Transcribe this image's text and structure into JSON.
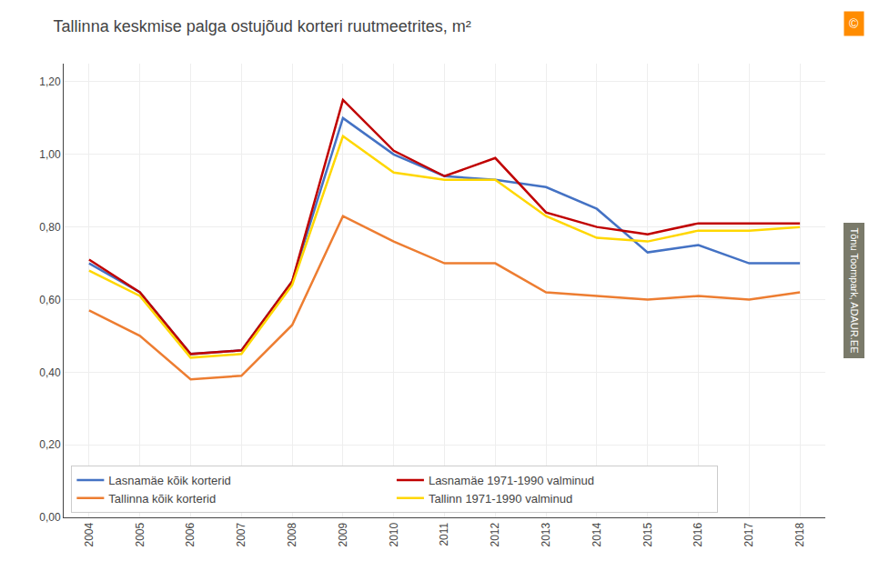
{
  "chart_data": {
    "type": "line",
    "title": "Tallinna keskmise palga ostujõud korteri ruutmeetrites, m²",
    "x": [
      2004,
      2005,
      2006,
      2007,
      2008,
      2009,
      2010,
      2011,
      2012,
      2013,
      2014,
      2015,
      2016,
      2017,
      2018
    ],
    "series": [
      {
        "name": "Lasnamäe kõik korterid",
        "color": "#4472C4",
        "values": [
          0.7,
          0.62,
          0.45,
          0.46,
          0.65,
          1.1,
          1.0,
          0.94,
          0.93,
          0.91,
          0.85,
          0.73,
          0.75,
          0.7,
          0.7
        ]
      },
      {
        "name": "Lasnamäe 1971-1990 valminud",
        "color": "#C00000",
        "values": [
          0.71,
          0.62,
          0.45,
          0.46,
          0.65,
          1.15,
          1.01,
          0.94,
          0.99,
          0.84,
          0.8,
          0.78,
          0.81,
          0.81,
          0.81
        ]
      },
      {
        "name": "Tallinna kõik korterid",
        "color": "#ED7D31",
        "values": [
          0.57,
          0.5,
          0.38,
          0.39,
          0.53,
          0.83,
          0.76,
          0.7,
          0.7,
          0.62,
          0.61,
          0.6,
          0.61,
          0.6,
          0.62
        ]
      },
      {
        "name": "Tallinn 1971-1990 valminud",
        "color": "#FFD700",
        "values": [
          0.68,
          0.61,
          0.44,
          0.45,
          0.64,
          1.05,
          0.95,
          0.93,
          0.93,
          0.83,
          0.77,
          0.76,
          0.79,
          0.79,
          0.8
        ]
      }
    ],
    "xlim": [
      2003.5,
      2018.5
    ],
    "xticks": [
      2004,
      2005,
      2006,
      2007,
      2008,
      2009,
      2010,
      2011,
      2012,
      2013,
      2014,
      2015,
      2016,
      2017,
      2018
    ],
    "ylim": [
      0.0,
      1.25
    ],
    "yticks": [
      {
        "value": 0.0,
        "label": "0,00"
      },
      {
        "value": 0.2,
        "label": "0,20"
      },
      {
        "value": 0.4,
        "label": "0,40"
      },
      {
        "value": 0.6,
        "label": "0,60"
      },
      {
        "value": 0.8,
        "label": "0,80"
      },
      {
        "value": 1.0,
        "label": "1,00"
      },
      {
        "value": 1.2,
        "label": "1,20"
      }
    ],
    "grid": true,
    "legend": "lower left",
    "annotations": [
      "©",
      "Tõnu Toompark, ADAUR.EE"
    ]
  }
}
